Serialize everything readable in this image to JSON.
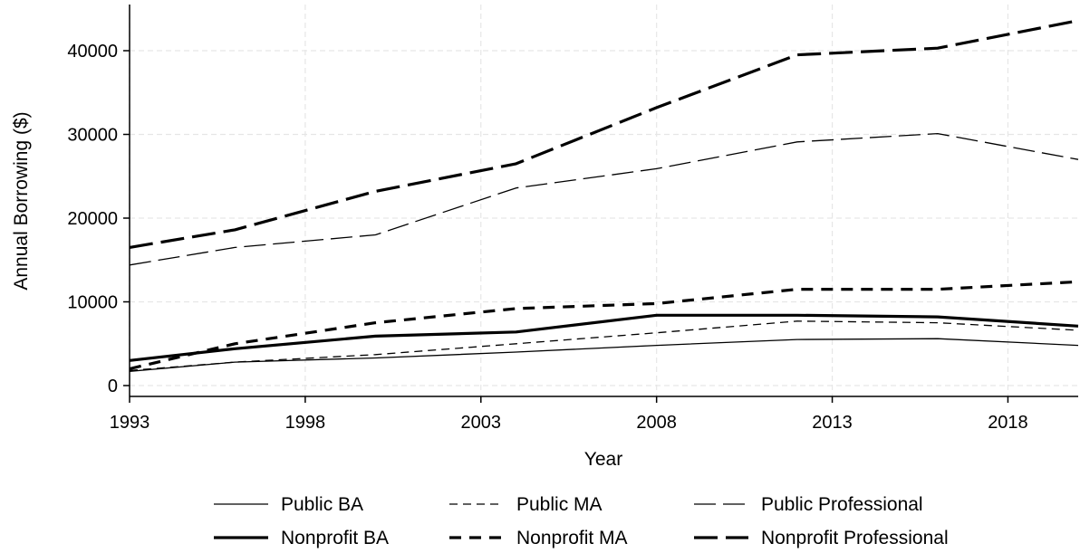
{
  "chart_data": {
    "type": "line",
    "title": "",
    "xlabel": "Year",
    "ylabel": "Annual Borrowing ($)",
    "xlim": [
      1993,
      2020
    ],
    "ylim": [
      0,
      45000
    ],
    "x_ticks": [
      1993,
      1998,
      2003,
      2008,
      2013,
      2018
    ],
    "y_ticks": [
      0,
      10000,
      20000,
      30000,
      40000
    ],
    "grid": true,
    "legend_position": "bottom",
    "x": [
      1993,
      1996,
      2000,
      2004,
      2008,
      2012,
      2016,
      2020
    ],
    "series": [
      {
        "name": "Public BA",
        "style": "thin-solid",
        "values": [
          1700,
          2800,
          3300,
          4000,
          4800,
          5500,
          5600,
          4800
        ]
      },
      {
        "name": "Public MA",
        "style": "thin-dashed",
        "values": [
          1800,
          2800,
          3700,
          5000,
          6300,
          7700,
          7500,
          6600
        ]
      },
      {
        "name": "Public Professional",
        "style": "thin-longdash",
        "values": [
          14400,
          16500,
          18000,
          23600,
          25900,
          29100,
          30100,
          27000
        ]
      },
      {
        "name": "Nonprofit BA",
        "style": "thick-solid",
        "values": [
          3000,
          4400,
          5900,
          6400,
          8400,
          8400,
          8200,
          7100
        ]
      },
      {
        "name": "Nonprofit MA",
        "style": "thick-dashed",
        "values": [
          2000,
          5000,
          7500,
          9200,
          9800,
          11500,
          11500,
          12400
        ]
      },
      {
        "name": "Nonprofit Professional",
        "style": "thick-longdash",
        "values": [
          16500,
          18600,
          23200,
          26500,
          33200,
          39500,
          40300,
          43600
        ]
      }
    ],
    "colors": {
      "line": "#000000",
      "grid": "#e6e6e6",
      "axis": "#000000"
    }
  }
}
